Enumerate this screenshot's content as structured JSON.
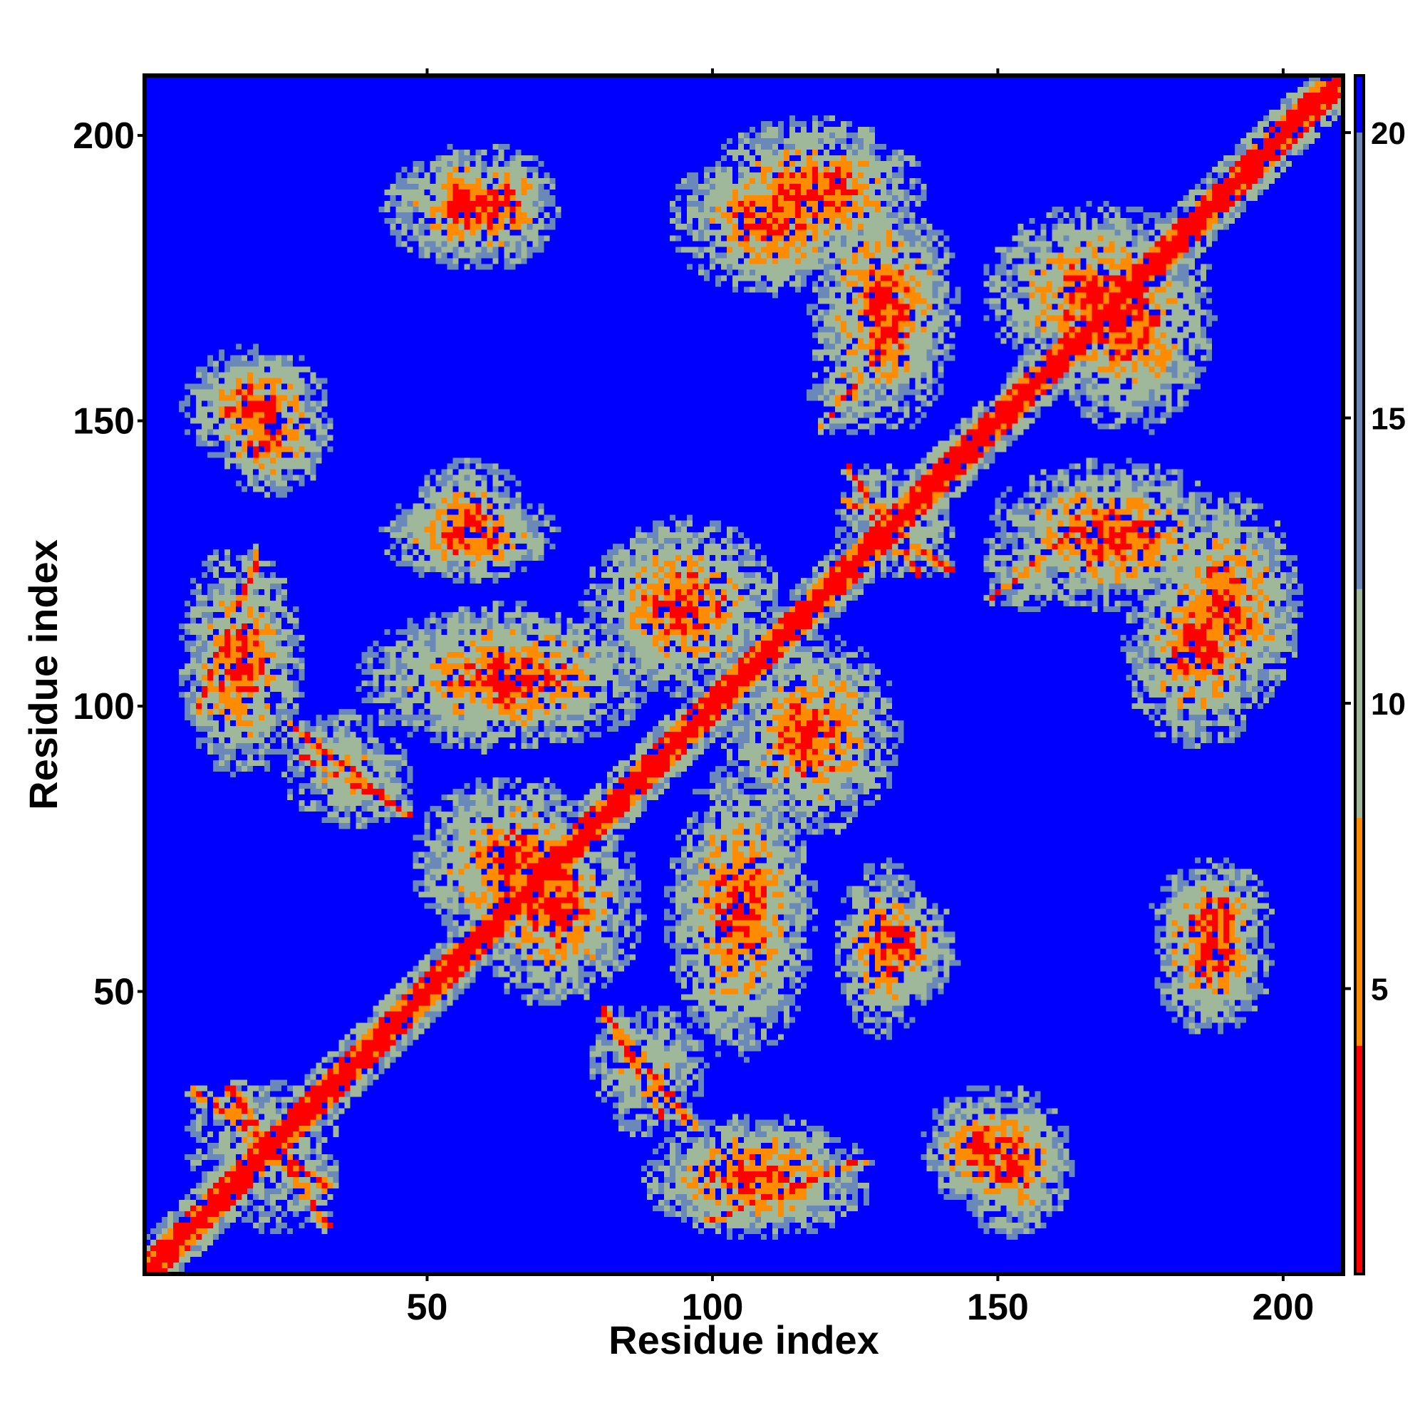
{
  "chart_data": {
    "type": "heatmap",
    "title": "",
    "xlabel": "Residue index",
    "ylabel": "Residue index",
    "n_residues": 210,
    "xlim": [
      1,
      210
    ],
    "ylim": [
      1,
      210
    ],
    "x_ticks": [
      50,
      100,
      150,
      200
    ],
    "y_ticks": [
      50,
      100,
      150,
      200
    ],
    "colorbar": {
      "range": [
        0,
        21
      ],
      "ticks": [
        5,
        10,
        15,
        20
      ],
      "colors": {
        "low": "#ff0000",
        "mid_low": "#ff8c00",
        "mid": "#9fb89a",
        "high": "#6a88b8",
        "background": "#0000ff"
      }
    },
    "grid": false,
    "contact_regions": [
      {
        "x": [
          1,
          210
        ],
        "y": [
          1,
          210
        ],
        "pattern": "main-diagonal"
      },
      {
        "x": [
          16,
          32
        ],
        "y": [
          10,
          32
        ],
        "pattern": "anti-diagonal"
      },
      {
        "x": [
          27,
          45
        ],
        "y": [
          82,
          96
        ],
        "pattern": "anti-diagonal"
      },
      {
        "x": [
          10,
          20
        ],
        "y": [
          100,
          125
        ],
        "pattern": "parallel"
      },
      {
        "x": [
          40,
          88
        ],
        "y": [
          95,
          115
        ],
        "pattern": "cluster"
      },
      {
        "x": [
          82,
          90
        ],
        "y": [
          30,
          45
        ],
        "pattern": "anti-diagonal"
      },
      {
        "x": [
          90,
          125
        ],
        "y": [
          10,
          25
        ],
        "pattern": "cluster"
      },
      {
        "x": [
          145,
          160
        ],
        "y": [
          10,
          30
        ],
        "pattern": "cluster"
      },
      {
        "x": [
          105,
          130
        ],
        "y": [
          80,
          110
        ],
        "pattern": "cluster"
      },
      {
        "x": [
          125,
          140
        ],
        "y": [
          125,
          135
        ],
        "pattern": "anti-diagonal"
      },
      {
        "x": [
          150,
          160
        ],
        "y": [
          120,
          128
        ],
        "pattern": "parallel"
      },
      {
        "x": [
          175,
          195
        ],
        "y": [
          95,
          125
        ],
        "pattern": "cluster"
      },
      {
        "x": [
          160,
          185
        ],
        "y": [
          150,
          185
        ],
        "pattern": "cluster"
      },
      {
        "x": [
          120,
          140
        ],
        "y": [
          150,
          190
        ],
        "pattern": "cluster"
      },
      {
        "x": [
          100,
          135
        ],
        "y": [
          180,
          200
        ],
        "pattern": "cluster"
      },
      {
        "x": [
          180,
          195
        ],
        "y": [
          55,
          70
        ],
        "pattern": "cluster"
      },
      {
        "x": [
          125,
          140
        ],
        "y": [
          50,
          65
        ],
        "pattern": "cluster"
      },
      {
        "x": [
          45,
          70
        ],
        "y": [
          180,
          195
        ],
        "pattern": "cluster"
      },
      {
        "x": [
          45,
          70
        ],
        "y": [
          125,
          135
        ],
        "pattern": "cluster"
      },
      {
        "x": [
          15,
          30
        ],
        "y": [
          140,
          155
        ],
        "pattern": "cluster"
      },
      {
        "x": [
          60,
          85
        ],
        "y": [
          50,
          80
        ],
        "pattern": "cluster"
      }
    ]
  }
}
